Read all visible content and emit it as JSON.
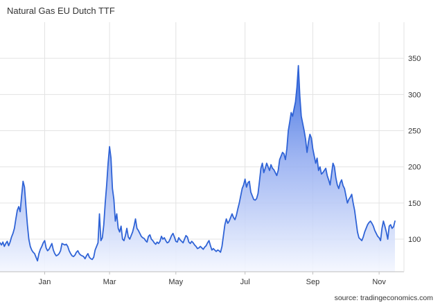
{
  "title": "Natural Gas EU Dutch TTF",
  "source": "source: tradingeconomics.com",
  "chart_data": {
    "type": "area",
    "title": "Natural Gas EU Dutch TTF",
    "xlabel": "",
    "ylabel": "",
    "x_unit": "trading days (approx. Dec 2021 – Nov 2022)",
    "ylim": [
      55,
      400
    ],
    "yticks": [
      100,
      150,
      200,
      250,
      300,
      350
    ],
    "xticks": [
      {
        "label": "Jan",
        "index": 31
      },
      {
        "label": "Mar",
        "index": 76
      },
      {
        "label": "May",
        "index": 122
      },
      {
        "label": "Jul",
        "index": 170
      },
      {
        "label": "Sep",
        "index": 217
      },
      {
        "label": "Nov",
        "index": 263
      }
    ],
    "grid": true,
    "line_color": "#2f63d6",
    "fill_top_color": "#3d6fe0",
    "fill_bottom_color": "#f4f7ff",
    "values": [
      95,
      92,
      96,
      90,
      94,
      97,
      91,
      96,
      103,
      108,
      115,
      128,
      140,
      145,
      138,
      160,
      180,
      172,
      145,
      120,
      100,
      90,
      85,
      82,
      80,
      75,
      70,
      80,
      86,
      90,
      95,
      98,
      88,
      84,
      86,
      90,
      94,
      85,
      80,
      77,
      78,
      80,
      84,
      94,
      93,
      92,
      93,
      90,
      84,
      80,
      77,
      76,
      78,
      82,
      84,
      80,
      78,
      77,
      76,
      73,
      77,
      80,
      75,
      73,
      72,
      75,
      85,
      90,
      95,
      135,
      98,
      102,
      120,
      150,
      175,
      205,
      228,
      212,
      170,
      155,
      125,
      135,
      115,
      110,
      118,
      100,
      98,
      105,
      115,
      103,
      100,
      105,
      110,
      118,
      128,
      115,
      112,
      108,
      104,
      102,
      101,
      98,
      96,
      104,
      106,
      100,
      98,
      95,
      93,
      96,
      94,
      97,
      104,
      100,
      102,
      98,
      95,
      96,
      100,
      105,
      108,
      103,
      97,
      96,
      102,
      99,
      97,
      95,
      100,
      105,
      103,
      96,
      94,
      97,
      95,
      92,
      90,
      87,
      88,
      90,
      88,
      86,
      89,
      91,
      95,
      98,
      91,
      85,
      87,
      85,
      83,
      85,
      84,
      82,
      90,
      105,
      120,
      128,
      122,
      125,
      130,
      135,
      130,
      127,
      133,
      142,
      150,
      160,
      170,
      175,
      183,
      172,
      178,
      180,
      165,
      160,
      155,
      154,
      156,
      163,
      180,
      198,
      205,
      192,
      198,
      205,
      200,
      195,
      203,
      198,
      196,
      192,
      188,
      195,
      210,
      215,
      220,
      218,
      210,
      225,
      250,
      262,
      275,
      270,
      280,
      290,
      310,
      340,
      298,
      270,
      260,
      250,
      238,
      220,
      235,
      245,
      240,
      225,
      215,
      205,
      212,
      195,
      200,
      190,
      192,
      195,
      198,
      188,
      182,
      175,
      190,
      205,
      200,
      185,
      175,
      170,
      178,
      182,
      174,
      170,
      160,
      150,
      155,
      158,
      162,
      150,
      140,
      125,
      110,
      102,
      100,
      98,
      103,
      110,
      115,
      120,
      123,
      125,
      122,
      118,
      112,
      108,
      104,
      102,
      98,
      115,
      125,
      118,
      110,
      100,
      118,
      120,
      115,
      117,
      125
    ]
  }
}
